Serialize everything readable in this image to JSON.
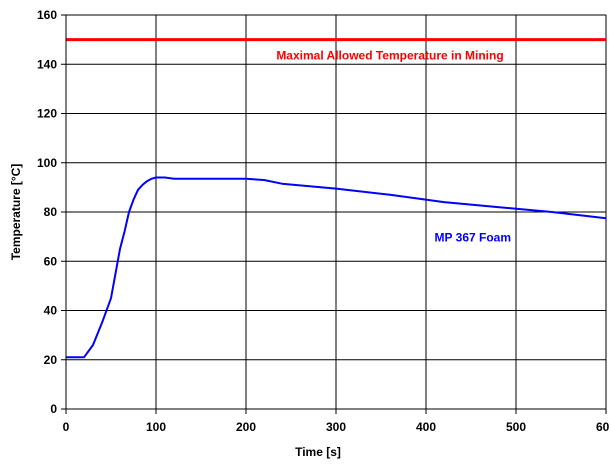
{
  "chart_data": {
    "type": "line",
    "title": "",
    "xlabel": "Time [s]",
    "ylabel": "Temperature [°C]",
    "xlim": [
      0,
      600
    ],
    "ylim": [
      0,
      160
    ],
    "xticks": [
      0,
      100,
      200,
      300,
      400,
      500,
      600
    ],
    "yticks": [
      0,
      20,
      40,
      60,
      80,
      100,
      120,
      140,
      160
    ],
    "grid": true,
    "legend": "none",
    "series": [
      {
        "name": "Maximal Allowed Temperature in Mining",
        "color": "#ff0000",
        "x": [
          0,
          600
        ],
        "y": [
          150,
          150
        ]
      },
      {
        "name": "MP 367 Foam",
        "color": "#0000ff",
        "x": [
          0,
          10,
          20,
          30,
          40,
          50,
          55,
          60,
          65,
          70,
          75,
          80,
          85,
          90,
          95,
          100,
          105,
          110,
          120,
          150,
          200,
          220,
          240,
          300,
          360,
          420,
          480,
          540,
          600
        ],
        "y": [
          21,
          21,
          21,
          26,
          35,
          45,
          55,
          65,
          72,
          80,
          85,
          89,
          91,
          92.5,
          93.5,
          94,
          94,
          94,
          93.5,
          93.5,
          93.5,
          93,
          91.5,
          89.5,
          87,
          84,
          82,
          80,
          77.5
        ]
      }
    ],
    "annotations": [
      {
        "text": "Maximal Allowed Temperature in Mining",
        "x": 360,
        "y": 142,
        "color": "#ff0000"
      },
      {
        "text": "MP 367 Foam",
        "x": 452,
        "y": 68,
        "color": "#0000ff"
      }
    ]
  }
}
